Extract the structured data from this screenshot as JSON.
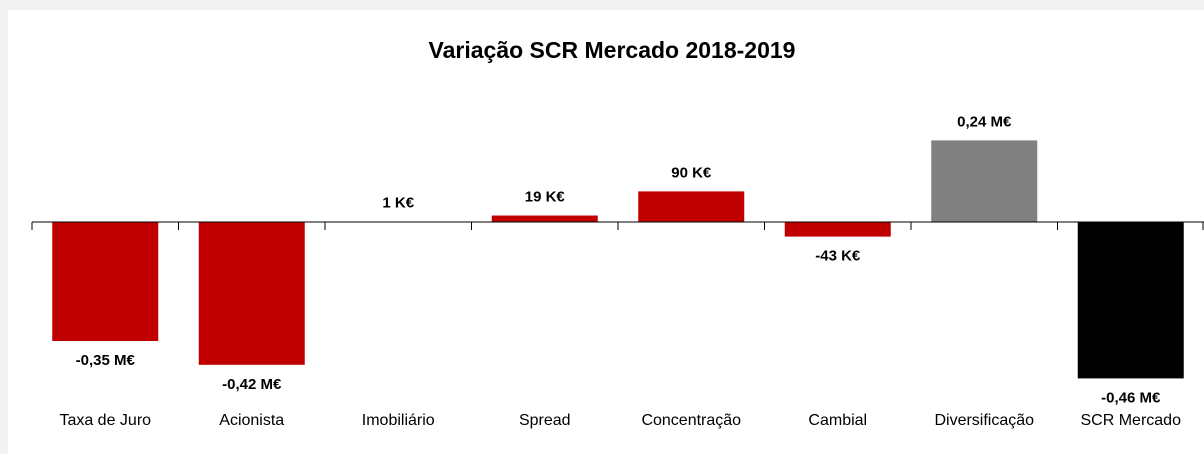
{
  "chart_data": {
    "type": "bar",
    "title": "Variação SCR Mercado 2018-2019",
    "categories": [
      "Taxa de Juro",
      "Acionista",
      "Imobiliário",
      "Spread",
      "Concentração",
      "Cambial",
      "Diversificação",
      "SCR Mercado"
    ],
    "values": [
      -0.35,
      -0.42,
      0.001,
      0.019,
      0.09,
      -0.043,
      0.24,
      -0.46
    ],
    "value_labels": [
      "-0,35 M€",
      "-0,42 M€",
      "1 K€",
      "19 K€",
      "90 K€",
      "-43 K€",
      "0,24 M€",
      "-0,46 M€"
    ],
    "colors": [
      "#c00000",
      "#c00000",
      "#c00000",
      "#c00000",
      "#c00000",
      "#c00000",
      "#808080",
      "#000000"
    ],
    "ylim": [
      -0.5,
      0.3
    ]
  }
}
